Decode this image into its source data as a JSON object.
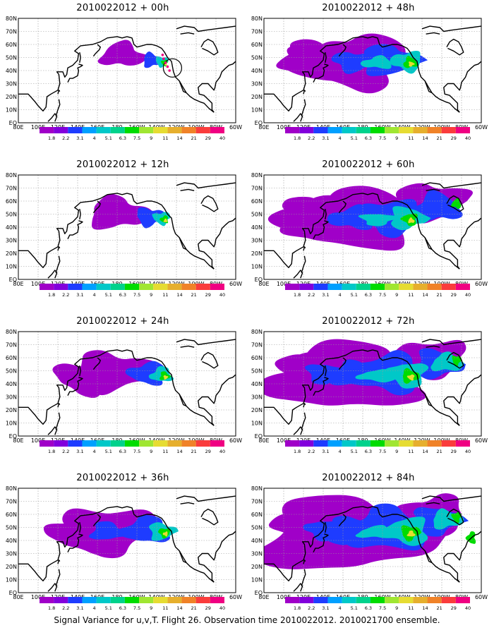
{
  "footer": "Signal Variance for u,v,T. Flight 26. Observation time 2010022012. 2010021700 ensemble.",
  "lon_labels": [
    "80E",
    "100E",
    "120E",
    "140E",
    "160E",
    "180",
    "160W",
    "140W",
    "120W",
    "100W",
    "80W",
    "60W"
  ],
  "lat_labels": [
    "80N",
    "70N",
    "60N",
    "50N",
    "40N",
    "30N",
    "20N",
    "10N",
    "EQ"
  ],
  "colorbar": {
    "labels": [
      "1.8",
      "2.2",
      "3.1",
      "4",
      "5.1",
      "6.3",
      "7.5",
      "9",
      "11",
      "14",
      "21",
      "29",
      "40"
    ],
    "colors": [
      "#a000c8",
      "#8200dc",
      "#1e3cff",
      "#00a0ff",
      "#00c8c8",
      "#00d28c",
      "#00dc00",
      "#a0e632",
      "#e6dc32",
      "#e6af2d",
      "#f08228",
      "#fa3c3c",
      "#f00082"
    ]
  },
  "panels": [
    {
      "title": "2010022012 + 00h",
      "spread": 0
    },
    {
      "title": "2010022012 + 12h",
      "spread": 1
    },
    {
      "title": "2010022012 + 24h",
      "spread": 2
    },
    {
      "title": "2010022012 + 36h",
      "spread": 3
    },
    {
      "title": "2010022012 + 48h",
      "spread": 4
    },
    {
      "title": "2010022012 + 60h",
      "spread": 5
    },
    {
      "title": "2010022012 + 72h",
      "spread": 6
    },
    {
      "title": "2010022012 + 84h",
      "spread": 7
    }
  ]
}
